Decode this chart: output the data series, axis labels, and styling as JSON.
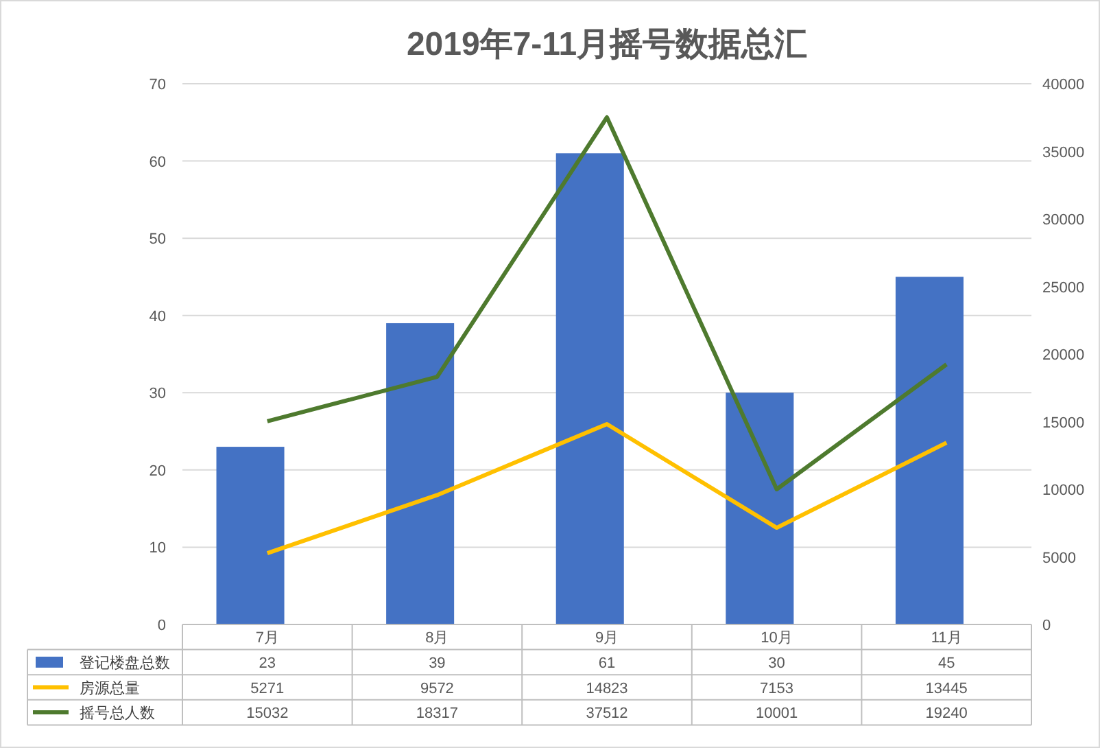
{
  "chart_data": {
    "type": "bar",
    "title": "2019年7-11月摇号数据总汇",
    "categories": [
      "7月",
      "8月",
      "9月",
      "10月",
      "11月"
    ],
    "series": [
      {
        "name": "登记楼盘总数",
        "color": "#4472c4",
        "values": [
          23,
          39,
          61,
          30,
          45
        ]
      },
      {
        "name": "房源总量",
        "type": "line",
        "axis": "y2",
        "color": "#ffc000",
        "values": [
          5271,
          9572,
          14823,
          7153,
          13445
        ]
      },
      {
        "name": "摇号总人数",
        "type": "line",
        "axis": "y2",
        "color": "#4e7a2e",
        "values": [
          15032,
          18317,
          37512,
          10001,
          19240
        ]
      }
    ],
    "ylim": [
      0,
      70
    ],
    "yticks": [
      0,
      10,
      20,
      30,
      40,
      50,
      60,
      70
    ],
    "y2lim": [
      0,
      40000
    ],
    "y2ticks": [
      0,
      5000,
      10000,
      15000,
      20000,
      25000,
      30000,
      35000,
      40000
    ],
    "grid": "y",
    "data_labels": true,
    "legend": "bottom",
    "marker": "none"
  }
}
